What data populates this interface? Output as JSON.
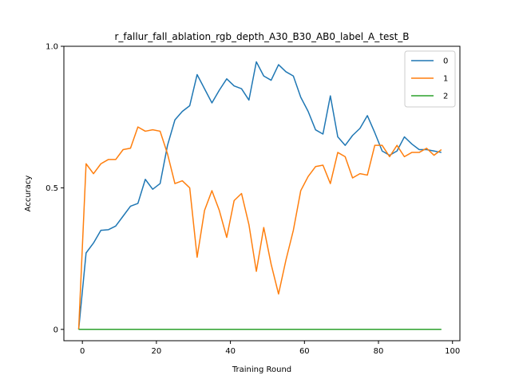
{
  "chart_data": {
    "type": "line",
    "title": "r_fallur_fall_ablation_rgb_depth_A30_B30_AB0_label_A_test_B",
    "xlabel": "Training Round",
    "ylabel": "Accuracy",
    "xlim": [
      -5,
      102
    ],
    "ylim": [
      -0.04,
      1.0
    ],
    "xticks": [
      0,
      20,
      40,
      60,
      80,
      100
    ],
    "yticks": [
      0,
      0.5,
      1.0
    ],
    "ytick_labels": [
      "0",
      "0.5",
      "1.0"
    ],
    "legend_position": "top-right",
    "grid": false,
    "x": [
      -1,
      1,
      3,
      5,
      7,
      9,
      11,
      13,
      15,
      17,
      19,
      21,
      23,
      25,
      27,
      29,
      31,
      33,
      35,
      37,
      39,
      41,
      43,
      45,
      47,
      49,
      51,
      53,
      55,
      57,
      59,
      61,
      63,
      65,
      67,
      69,
      71,
      73,
      75,
      77,
      79,
      81,
      83,
      85,
      87,
      89,
      91,
      93,
      95,
      97
    ],
    "series": [
      {
        "name": "0",
        "color": "#1f77b4",
        "values": [
          0.0,
          0.27,
          0.305,
          0.35,
          0.352,
          0.365,
          0.4,
          0.435,
          0.445,
          0.53,
          0.495,
          0.515,
          0.65,
          0.74,
          0.77,
          0.79,
          0.9,
          0.85,
          0.8,
          0.845,
          0.885,
          0.86,
          0.85,
          0.81,
          0.945,
          0.895,
          0.88,
          0.935,
          0.91,
          0.895,
          0.82,
          0.77,
          0.705,
          0.69,
          0.825,
          0.68,
          0.65,
          0.685,
          0.71,
          0.755,
          0.695,
          0.63,
          0.615,
          0.63,
          0.68,
          0.655,
          0.635,
          0.635,
          0.63,
          0.625
        ]
      },
      {
        "name": "1",
        "color": "#ff7f0e",
        "values": [
          0.0,
          0.585,
          0.55,
          0.585,
          0.6,
          0.6,
          0.635,
          0.64,
          0.715,
          0.7,
          0.705,
          0.7,
          0.62,
          0.515,
          0.525,
          0.5,
          0.255,
          0.42,
          0.49,
          0.42,
          0.325,
          0.455,
          0.48,
          0.37,
          0.205,
          0.36,
          0.23,
          0.125,
          0.245,
          0.35,
          0.49,
          0.54,
          0.575,
          0.58,
          0.515,
          0.625,
          0.61,
          0.535,
          0.55,
          0.545,
          0.65,
          0.65,
          0.61,
          0.65,
          0.61,
          0.625,
          0.625,
          0.64,
          0.615,
          0.635
        ]
      },
      {
        "name": "2",
        "color": "#2ca02c",
        "values": [
          0.0,
          0.0,
          0.0,
          0.0,
          0.0,
          0.0,
          0.0,
          0.0,
          0.0,
          0.0,
          0.0,
          0.0,
          0.0,
          0.0,
          0.0,
          0.0,
          0.0,
          0.0,
          0.0,
          0.0,
          0.0,
          0.0,
          0.0,
          0.0,
          0.0,
          0.0,
          0.0,
          0.0,
          0.0,
          0.0,
          0.0,
          0.0,
          0.0,
          0.0,
          0.0,
          0.0,
          0.0,
          0.0,
          0.0,
          0.0,
          0.0,
          0.0,
          0.0,
          0.0,
          0.0,
          0.0,
          0.0,
          0.0,
          0.0,
          0.0
        ]
      }
    ]
  }
}
